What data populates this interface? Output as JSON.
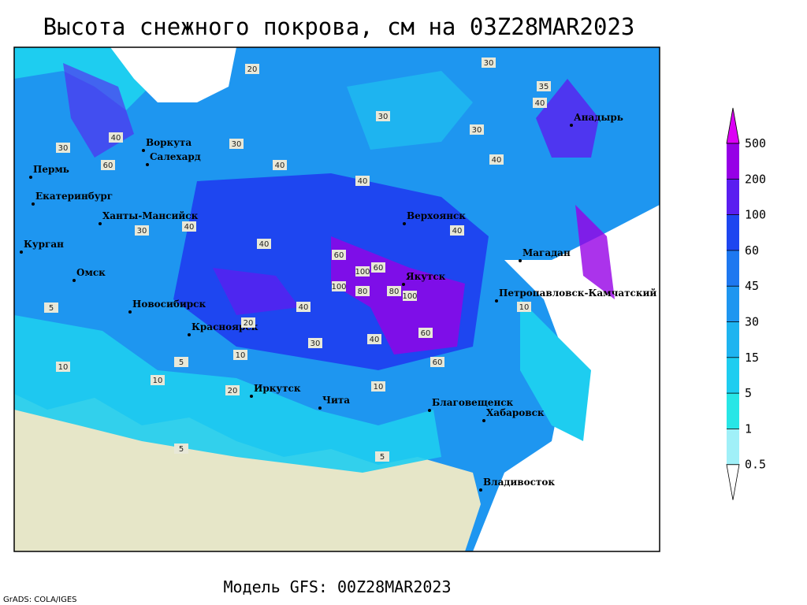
{
  "title": "Высота снежного покрова, см на 03Z28MAR2023",
  "footer": "Модель GFS: 00Z28MAR2023",
  "credit": "GrADS: COLA/IGES",
  "colorbar": {
    "levels": [
      0.5,
      1,
      5,
      15,
      30,
      45,
      60,
      100,
      200,
      500
    ],
    "colors": [
      "#ffffff",
      "#a0f0f8",
      "#28e6e6",
      "#1ecdf0",
      "#1eb4f0",
      "#1e96f0",
      "#1e78f0",
      "#1e46f0",
      "#5a1ef0",
      "#9600e6",
      "#dc00f5"
    ]
  },
  "cities": [
    "Воркута",
    "Салехард",
    "Пермь",
    "Екатеринбург",
    "Ханты-Мансийск",
    "Курган",
    "Омск",
    "Новосибирск",
    "Красноярск",
    "Иркутск",
    "Чита",
    "Верхоянск",
    "Якутск",
    "Магадан",
    "Анадырь",
    "Петропавловск-Камчатский",
    "Благовещенск",
    "Хабаровск",
    "Владивосток"
  ],
  "contour_labels": [
    30,
    20,
    40,
    30,
    60,
    40,
    40,
    30,
    40,
    40,
    40,
    30,
    40,
    100,
    60,
    80,
    100,
    60,
    80,
    100,
    60,
    60,
    40,
    30,
    10,
    5,
    10,
    20,
    10,
    5,
    10,
    5,
    30,
    40,
    40,
    10,
    5,
    20,
    35,
    30
  ]
}
